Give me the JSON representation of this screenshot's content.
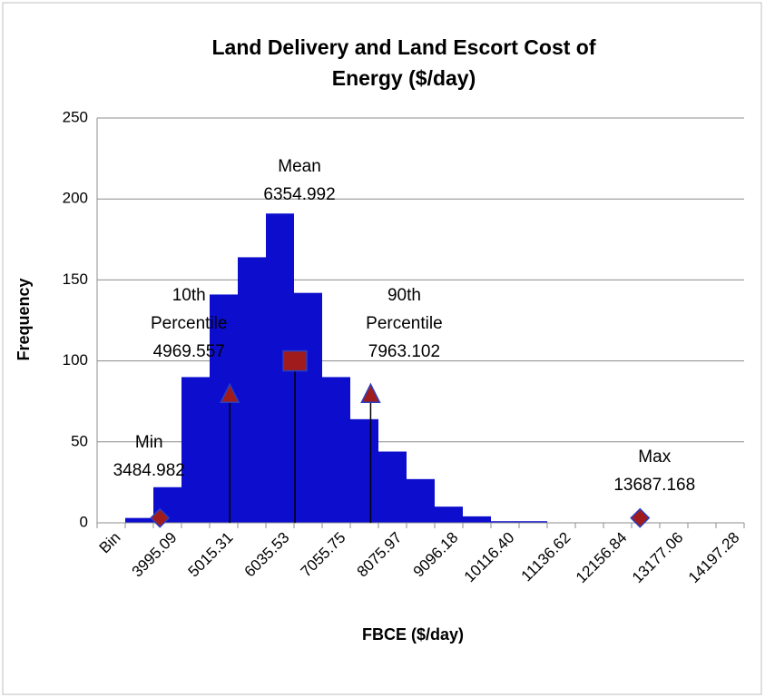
{
  "chart_data": {
    "type": "bar",
    "title_lines": [
      "Land Delivery and Land Escort Cost of",
      "Energy ($/day)"
    ],
    "x_label": "FBCE ($/day)",
    "y_label": "Frequency",
    "categories": [
      "Bin",
      null,
      "3995.09",
      null,
      "5015.31",
      null,
      "6035.53",
      null,
      "7055.75",
      null,
      "8075.97",
      null,
      "9096.18",
      null,
      "10116.40",
      null,
      "11136.62",
      null,
      "12156.84",
      null,
      "13177.06",
      null,
      "14197.28"
    ],
    "values": [
      0,
      3,
      22,
      90,
      141,
      164,
      191,
      142,
      90,
      64,
      44,
      27,
      10,
      4,
      1,
      1,
      0,
      0,
      0,
      0,
      0,
      0,
      0
    ],
    "color": "#0d0dce",
    "ylim": [
      0,
      250
    ],
    "yticks": [
      0,
      50,
      100,
      150,
      200,
      250
    ],
    "grid": true,
    "markers": {
      "type": "scatter",
      "xlim": [
        2150,
        15900
      ],
      "color": "#a01c1c",
      "edge_color": "#2a3fc0",
      "points": [
        {
          "label_lines": [
            "Min"
          ],
          "x": 3484.982,
          "y": 3,
          "shape": "diamond",
          "drop_line": false
        },
        {
          "label_lines": [
            "10th",
            "Percentile"
          ],
          "x": 4969.557,
          "y": 80,
          "shape": "triangle",
          "drop_line": true
        },
        {
          "label_lines": [
            "Mean"
          ],
          "x": 6354.992,
          "y": 100,
          "shape": "square",
          "drop_line": true
        },
        {
          "label_lines": [
            "90th",
            "Percentile"
          ],
          "x": 7963.102,
          "y": 80,
          "shape": "triangle",
          "drop_line": true
        },
        {
          "label_lines": [
            "Max"
          ],
          "x": 13687.168,
          "y": 3,
          "shape": "diamond",
          "drop_line": false
        }
      ]
    }
  }
}
